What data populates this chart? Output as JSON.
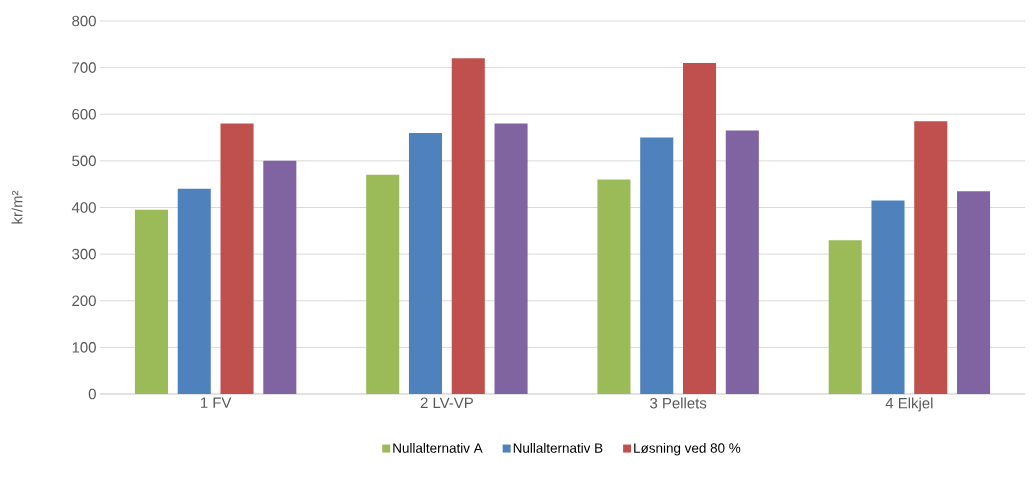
{
  "chart_data": {
    "type": "bar",
    "ylabel": "kr/m²",
    "categories": [
      "1 FV",
      "2 LV-VP",
      "3 Pellets",
      "4 Elkjel"
    ],
    "series": [
      {
        "name": "Nullalternativ A",
        "color": "#9bbb59",
        "values": [
          395,
          470,
          460,
          330
        ]
      },
      {
        "name": "Nullalternativ B",
        "color": "#4f81bd",
        "values": [
          440,
          560,
          550,
          415
        ]
      },
      {
        "name": "Løsning ved 80 %",
        "color": "#c0504d",
        "values": [
          580,
          720,
          710,
          585
        ]
      },
      {
        "color": "#8064a2",
        "values": [
          500,
          580,
          565,
          435
        ]
      }
    ],
    "ylim": [
      0,
      800
    ],
    "yticks": [
      0,
      100,
      200,
      300,
      400,
      500,
      600,
      700,
      800
    ],
    "grid": "y",
    "legend": "bottom"
  }
}
